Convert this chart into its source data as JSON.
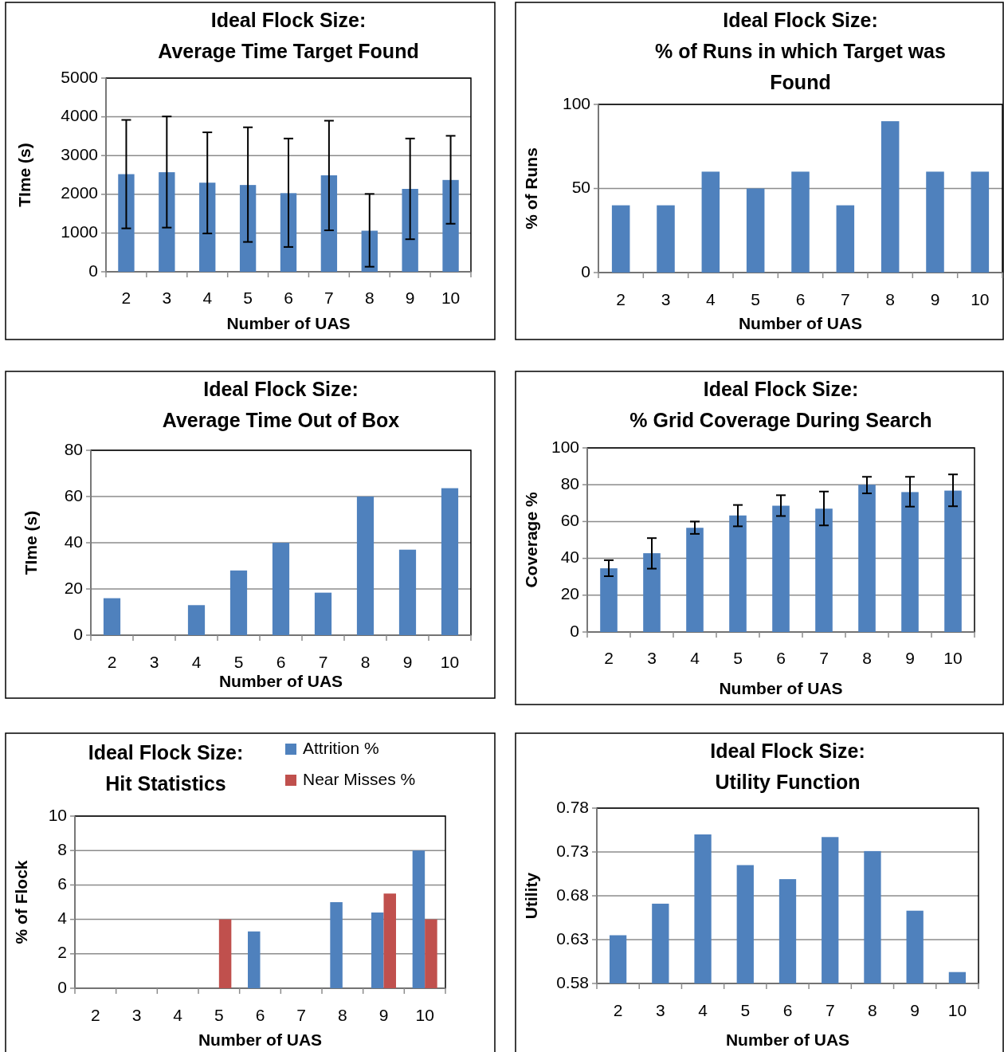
{
  "chart_data": [
    {
      "type": "bar",
      "title": "Ideal Flock Size:\nAverage Time Target Found",
      "xlabel": "Number of UAS",
      "ylabel": "TIme (s)",
      "categories": [
        "2",
        "3",
        "4",
        "5",
        "6",
        "7",
        "8",
        "9",
        "10"
      ],
      "series": [
        {
          "color": "#4f81bd",
          "values": [
            2520,
            2570,
            2300,
            2240,
            2030,
            2490,
            1060,
            2140,
            2370
          ],
          "errors": [
            [
              1120,
              3920
            ],
            [
              1140,
              4010
            ],
            [
              990,
              3600
            ],
            [
              770,
              3730
            ],
            [
              640,
              3440
            ],
            [
              1070,
              3900
            ],
            [
              130,
              2010
            ],
            [
              840,
              3440
            ],
            [
              1240,
              3510
            ]
          ]
        }
      ],
      "ylim": [
        0,
        5000
      ],
      "yticks": [
        0,
        1000,
        2000,
        3000,
        4000,
        5000
      ],
      "grid": "y",
      "legend": false
    },
    {
      "type": "bar",
      "title": "Ideal Flock Size:\n% of Runs in which Target was\nFound",
      "xlabel": "Number of UAS",
      "ylabel": "% of Runs",
      "categories": [
        "2",
        "3",
        "4",
        "5",
        "6",
        "7",
        "8",
        "9",
        "10"
      ],
      "series": [
        {
          "color": "#4f81bd",
          "values": [
            40,
            40,
            60,
            50,
            60,
            40,
            90,
            60,
            60
          ]
        }
      ],
      "ylim": [
        0,
        100
      ],
      "yticks": [
        0,
        50,
        100
      ],
      "grid": "y",
      "legend": false
    },
    {
      "type": "bar",
      "title": "Ideal Flock Size:\nAverage Time Out of Box",
      "xlabel": "Number of UAS",
      "ylabel": "TIme (s)",
      "categories": [
        "2",
        "3",
        "4",
        "5",
        "6",
        "7",
        "8",
        "9",
        "10"
      ],
      "series": [
        {
          "color": "#4f81bd",
          "values": [
            16,
            0,
            13,
            28,
            40,
            18.4,
            60,
            37,
            63.6
          ]
        }
      ],
      "ylim": [
        0,
        80
      ],
      "yticks": [
        0,
        20,
        40,
        60,
        80
      ],
      "grid": "y",
      "legend": false
    },
    {
      "type": "bar",
      "title": "Ideal Flock Size:\n% Grid Coverage During Search",
      "xlabel": "Number of UAS",
      "ylabel": "Coverage %",
      "categories": [
        "2",
        "3",
        "4",
        "5",
        "6",
        "7",
        "8",
        "9",
        "10"
      ],
      "series": [
        {
          "color": "#4f81bd",
          "values": [
            34.6,
            42.8,
            56.6,
            63.3,
            68.6,
            67,
            80,
            76,
            76.8
          ],
          "errors": [
            [
              30.3,
              39
            ],
            [
              34.4,
              51
            ],
            [
              53.3,
              60
            ],
            [
              57.4,
              69
            ],
            [
              63,
              74.3
            ],
            [
              57.9,
              76.3
            ],
            [
              75.3,
              84.3
            ],
            [
              68.1,
              84.3
            ],
            [
              68.3,
              85.6
            ]
          ]
        }
      ],
      "ylim": [
        0,
        100
      ],
      "yticks": [
        0,
        20,
        40,
        60,
        80,
        100
      ],
      "grid": "y",
      "legend": false
    },
    {
      "type": "bar",
      "title": "Ideal Flock Size:\nHit Statistics",
      "xlabel": "Number of UAS",
      "ylabel": "% of Flock",
      "categories": [
        "2",
        "3",
        "4",
        "5",
        "6",
        "7",
        "8",
        "9",
        "10"
      ],
      "series": [
        {
          "name": "Attrition %",
          "color": "#4f81bd",
          "values": [
            0,
            0,
            0,
            0,
            3.3,
            0,
            5,
            4.4,
            8
          ]
        },
        {
          "name": "Near Misses %",
          "color": "#c0504d",
          "values": [
            0,
            0,
            0,
            4,
            0,
            0,
            0,
            5.5,
            4
          ]
        }
      ],
      "ylim": [
        0,
        10
      ],
      "yticks": [
        0,
        2,
        4,
        6,
        8,
        10
      ],
      "grid": "y",
      "legend": "top right"
    },
    {
      "type": "bar",
      "title": "Ideal Flock Size:\nUtility Function",
      "xlabel": "Number of UAS",
      "ylabel": "Utility",
      "categories": [
        "2",
        "3",
        "4",
        "5",
        "6",
        "7",
        "8",
        "9",
        "10"
      ],
      "series": [
        {
          "color": "#4f81bd",
          "values": [
            0.635,
            0.671,
            0.75,
            0.715,
            0.699,
            0.747,
            0.731,
            0.663,
            0.593
          ]
        }
      ],
      "ylim": [
        0.58,
        0.78
      ],
      "yticks": [
        0.58,
        0.63,
        0.68,
        0.73,
        0.78
      ],
      "grid": "y",
      "legend": false
    }
  ]
}
